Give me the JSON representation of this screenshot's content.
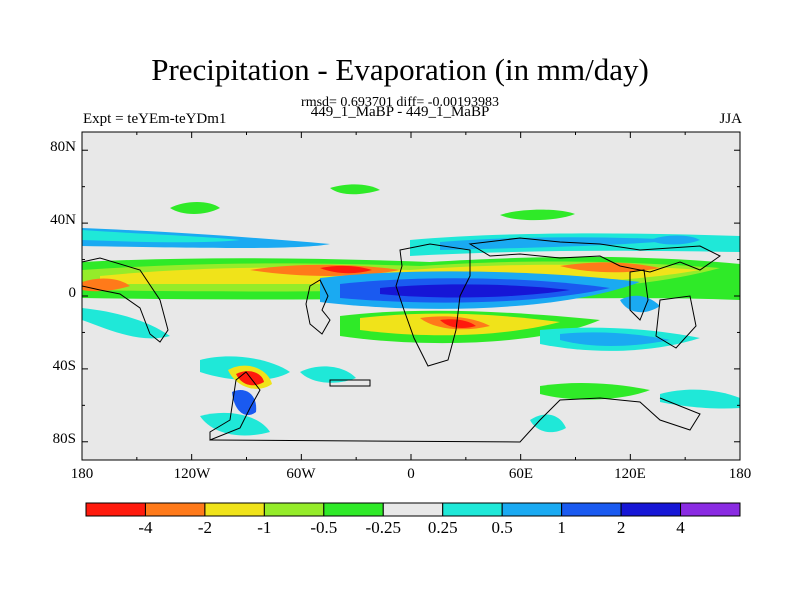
{
  "title": "Precipitation - Evaporation (in mm/day)",
  "stats": "rmsd= 0.693701 diff= -0.00193983",
  "experiment": "Expt = teYEm-teYDm1",
  "case": "449_1_MaBP - 449_1_MaBP",
  "season": "JJA",
  "y_ticks": [
    "80N",
    "40N",
    "0",
    "40S",
    "80S"
  ],
  "x_ticks": [
    "180",
    "120W",
    "60W",
    "0",
    "60E",
    "120E",
    "180"
  ],
  "colorbar": {
    "labels": [
      "-4",
      "-2",
      "-1",
      "-0.5",
      "-0.25",
      "0.25",
      "0.5",
      "1",
      "2",
      "4"
    ],
    "colors": [
      "#ff1a0d",
      "#ff7a1a",
      "#f0e31a",
      "#95ec2a",
      "#2fea28",
      "#e8e8e8",
      "#1fe8d8",
      "#1aaaf2",
      "#1a5af0",
      "#1616d6",
      "#8a2be2"
    ]
  }
}
